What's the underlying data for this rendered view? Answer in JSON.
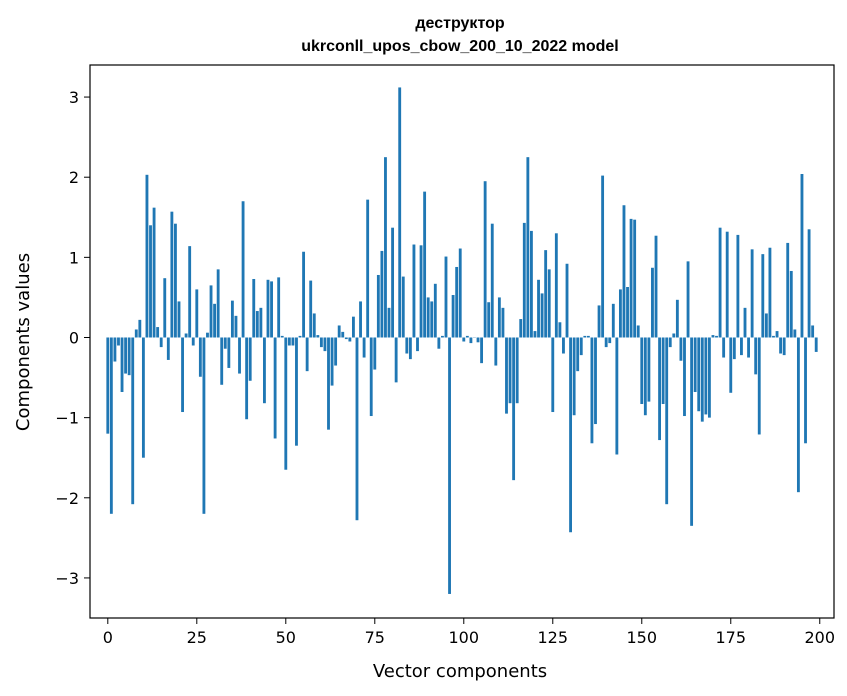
{
  "chart_data": {
    "type": "bar",
    "title_line1": "деструктор",
    "title_line2": "ukrconll_upos_cbow_200_10_2022 model",
    "xlabel": "Vector components",
    "ylabel": "Components values",
    "xlim": [
      -5,
      204
    ],
    "ylim": [
      -3.5,
      3.4
    ],
    "xticks": [
      0,
      25,
      50,
      75,
      100,
      125,
      150,
      175,
      200
    ],
    "yticks": [
      -3,
      -2,
      -1,
      0,
      1,
      2,
      3
    ],
    "xtick_labels": [
      "0",
      "25",
      "50",
      "75",
      "100",
      "125",
      "150",
      "175",
      "200"
    ],
    "ytick_labels": [
      "−3",
      "−2",
      "−1",
      "0",
      "1",
      "2",
      "3"
    ],
    "bar_color": "#1f77b4",
    "grid": false,
    "values": [
      -1.2,
      -2.2,
      -0.3,
      -0.1,
      -0.68,
      -0.45,
      -0.47,
      -2.08,
      0.1,
      0.22,
      -1.5,
      2.03,
      1.4,
      1.62,
      0.13,
      -0.12,
      0.74,
      -0.28,
      1.57,
      1.42,
      0.45,
      -0.93,
      0.05,
      1.14,
      -0.1,
      0.6,
      -0.49,
      -2.2,
      0.06,
      0.65,
      0.42,
      0.85,
      -0.59,
      -0.14,
      -0.38,
      0.46,
      0.27,
      -0.45,
      1.7,
      -1.02,
      -0.54,
      0.73,
      0.33,
      0.37,
      -0.82,
      0.72,
      0.7,
      -1.26,
      0.75,
      0.02,
      -1.65,
      -0.1,
      -0.1,
      -1.35,
      0.02,
      1.07,
      -0.42,
      0.71,
      0.3,
      0.03,
      -0.12,
      -0.17,
      -1.15,
      -0.6,
      -0.35,
      0.15,
      0.07,
      -0.02,
      -0.05,
      0.26,
      -2.28,
      0.45,
      -0.25,
      1.72,
      -0.98,
      -0.4,
      0.78,
      1.08,
      2.25,
      0.37,
      1.37,
      -0.56,
      3.12,
      0.76,
      -0.2,
      -0.27,
      1.16,
      -0.17,
      1.15,
      1.82,
      0.5,
      0.45,
      0.67,
      -0.14,
      0.02,
      1.01,
      -3.2,
      0.53,
      0.88,
      1.11,
      -0.05,
      0.02,
      -0.07,
      0.0,
      -0.06,
      -0.32,
      1.95,
      0.44,
      1.42,
      -0.35,
      0.5,
      0.37,
      -0.95,
      -0.82,
      -1.78,
      -0.82,
      0.23,
      1.43,
      2.25,
      1.33,
      0.08,
      0.72,
      0.55,
      1.09,
      0.85,
      -0.93,
      1.3,
      0.19,
      -0.2,
      0.92,
      -2.43,
      -0.97,
      -0.42,
      -0.22,
      0.02,
      0.02,
      -1.32,
      -1.08,
      0.4,
      2.02,
      -0.12,
      -0.07,
      0.42,
      -1.46,
      0.6,
      1.65,
      0.63,
      1.48,
      1.47,
      0.15,
      -0.83,
      -0.97,
      -0.8,
      0.87,
      1.27,
      -1.28,
      -0.83,
      -2.08,
      -0.12,
      0.05,
      0.47,
      -0.29,
      -0.98,
      0.95,
      -2.35,
      -0.68,
      -0.92,
      -1.05,
      -0.96,
      -1.0,
      0.03,
      0.02,
      1.37,
      -0.25,
      1.32,
      -0.69,
      -0.27,
      1.28,
      -0.22,
      0.37,
      -0.25,
      1.1,
      -0.46,
      -1.21,
      1.04,
      0.3,
      1.12,
      0.02,
      0.08,
      -0.2,
      -0.22,
      1.18,
      0.83,
      0.1,
      -1.93,
      2.04,
      -1.32,
      1.35,
      0.15,
      -0.18
    ]
  }
}
